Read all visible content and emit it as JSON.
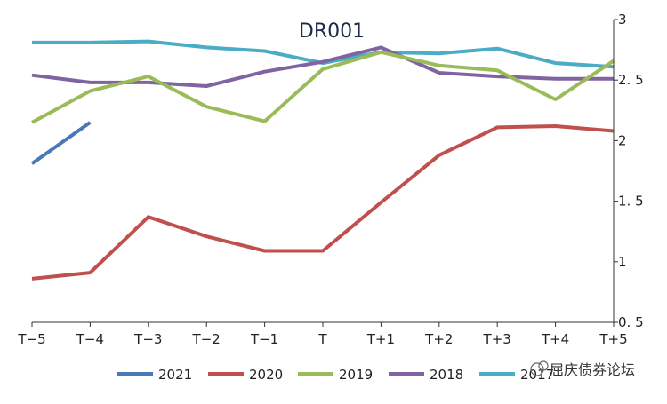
{
  "chart_data": {
    "type": "line",
    "title": "DR001",
    "xlabel": "",
    "ylabel": "",
    "categories": [
      "T−5",
      "T−4",
      "T−3",
      "T−2",
      "T−1",
      "T",
      "T+1",
      "T+2",
      "T+3",
      "T+4",
      "T+5"
    ],
    "y_ticks": [
      "0. 5",
      "1",
      "1. 5",
      "2",
      "2. 5",
      "3"
    ],
    "ylim": [
      0.5,
      3
    ],
    "y_axis_side": "right",
    "grid": false,
    "legend_position": "bottom",
    "series": [
      {
        "name": "2021",
        "color": "#4a7ab5",
        "values": [
          1.81,
          2.15,
          null,
          null,
          null,
          null,
          null,
          null,
          null,
          null,
          null
        ]
      },
      {
        "name": "2020",
        "color": "#c0504d",
        "values": [
          0.86,
          0.91,
          1.37,
          1.21,
          1.09,
          1.09,
          1.49,
          1.88,
          2.11,
          2.12,
          2.08
        ]
      },
      {
        "name": "2019",
        "color": "#9bbb59",
        "values": [
          2.15,
          2.41,
          2.53,
          2.28,
          2.16,
          2.59,
          2.73,
          2.62,
          2.58,
          2.34,
          2.66
        ]
      },
      {
        "name": "2018",
        "color": "#8064a2",
        "values": [
          2.54,
          2.48,
          2.48,
          2.45,
          2.57,
          2.65,
          2.77,
          2.56,
          2.53,
          2.51,
          2.51
        ]
      },
      {
        "name": "2017",
        "color": "#4bacc6",
        "values": [
          2.81,
          2.81,
          2.82,
          2.77,
          2.74,
          2.64,
          2.73,
          2.72,
          2.76,
          2.64,
          2.61
        ]
      }
    ]
  },
  "legend": {
    "watermark": "屈庆债券论坛"
  }
}
